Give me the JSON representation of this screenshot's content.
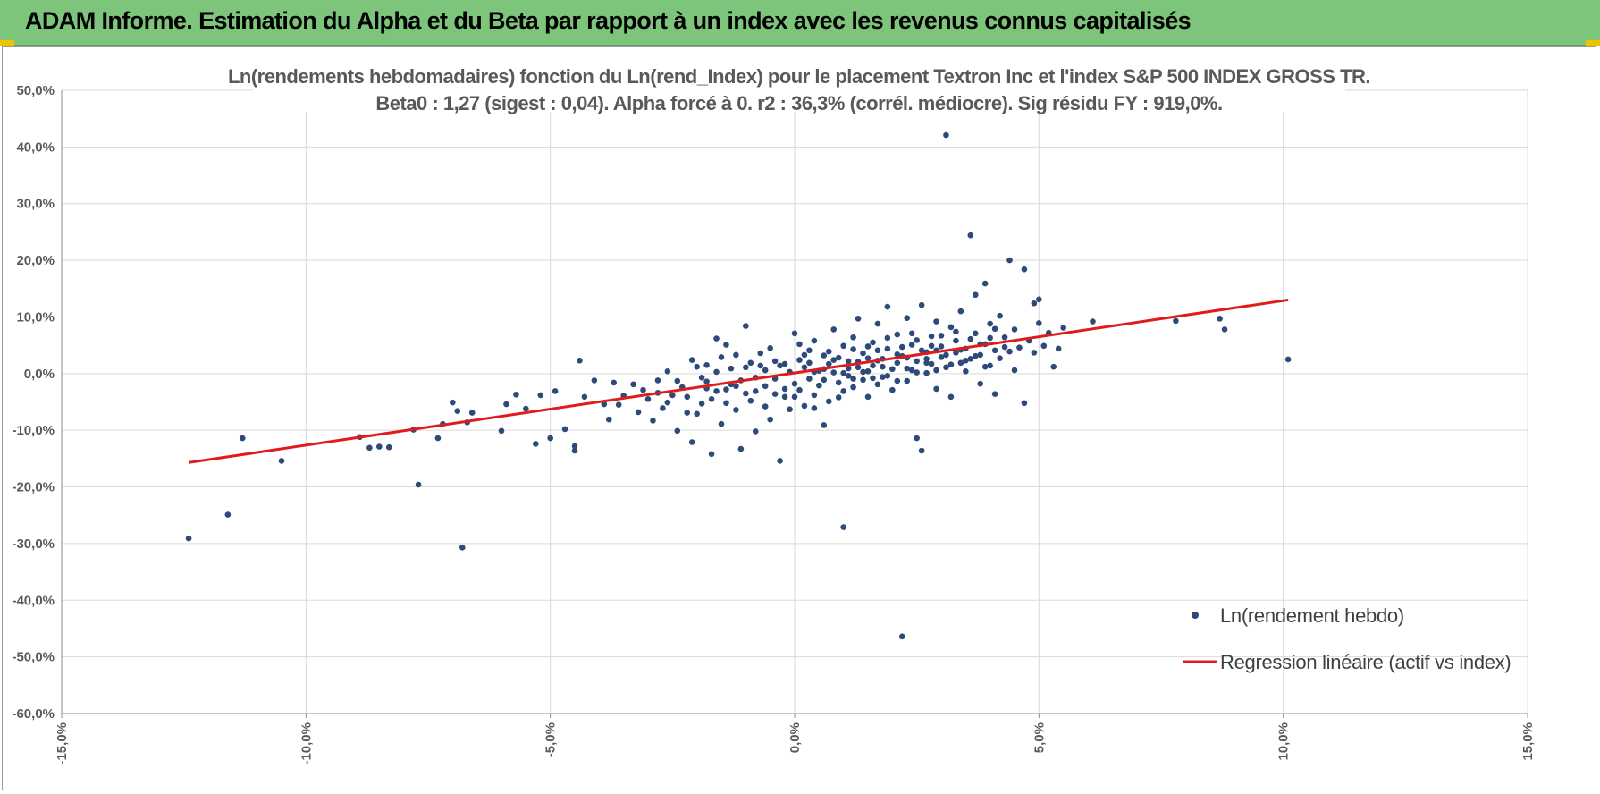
{
  "header": {
    "title": "ADAM Informe. Estimation du Alpha et du Beta par rapport à un index avec les revenus connus capitalisés",
    "background_color": "#7cc57a",
    "corner_color": "#f2c200"
  },
  "chart_data": {
    "type": "scatter",
    "title": "Ln(rendements hebdomadaires) fonction du Ln(rend_Index) pour le placement Textron Inc et l'index S&P 500 INDEX GROSS TR.",
    "subtitle": "Beta0 : 1,27 (sigest : 0,04). Alpha forcé à 0. r2 : 36,3% (corrél. médiocre). Sig résidu FY : 919,0%.",
    "xlabel": "",
    "ylabel": "",
    "xlim": [
      -0.15,
      0.15
    ],
    "ylim": [
      -0.6,
      0.5
    ],
    "x_ticks": [
      -0.15,
      -0.1,
      -0.05,
      0.0,
      0.05,
      0.1,
      0.15
    ],
    "x_tick_labels": [
      "-15,0%",
      "-10,0%",
      "-5,0%",
      "0,0%",
      "5,0%",
      "10,0%",
      "15,0%"
    ],
    "y_ticks": [
      0.5,
      0.4,
      0.3,
      0.2,
      0.1,
      0.0,
      -0.1,
      -0.2,
      -0.3,
      -0.4,
      -0.5,
      -0.6
    ],
    "y_tick_labels": [
      "50,0%",
      "40,0%",
      "30,0%",
      "20,0%",
      "10,0%",
      "0,0%",
      "-10,0%",
      "-20,0%",
      "-30,0%",
      "-40,0%",
      "-50,0%",
      "-60,0%"
    ],
    "grid": true,
    "legend_position": "bottom-right",
    "series": [
      {
        "name": "Ln(rendement hebdo)",
        "kind": "scatter",
        "color": "#2e4a7a",
        "points": [
          [
            -0.124,
            -0.291
          ],
          [
            -0.116,
            -0.249
          ],
          [
            -0.113,
            -0.114
          ],
          [
            -0.105,
            -0.154
          ],
          [
            -0.089,
            -0.112
          ],
          [
            -0.087,
            -0.131
          ],
          [
            -0.085,
            -0.129
          ],
          [
            -0.083,
            -0.13
          ],
          [
            -0.078,
            -0.099
          ],
          [
            -0.077,
            -0.196
          ],
          [
            -0.073,
            -0.114
          ],
          [
            -0.072,
            -0.089
          ],
          [
            -0.07,
            -0.051
          ],
          [
            -0.069,
            -0.066
          ],
          [
            -0.068,
            -0.307
          ],
          [
            -0.067,
            -0.086
          ],
          [
            -0.066,
            -0.069
          ],
          [
            -0.06,
            -0.101
          ],
          [
            -0.059,
            -0.054
          ],
          [
            -0.057,
            -0.037
          ],
          [
            -0.055,
            -0.062
          ],
          [
            -0.053,
            -0.124
          ],
          [
            -0.052,
            -0.038
          ],
          [
            -0.05,
            -0.114
          ],
          [
            -0.049,
            -0.031
          ],
          [
            -0.047,
            -0.098
          ],
          [
            -0.045,
            -0.136
          ],
          [
            -0.045,
            -0.128
          ],
          [
            -0.044,
            0.023
          ],
          [
            -0.043,
            -0.041
          ],
          [
            -0.041,
            -0.012
          ],
          [
            -0.039,
            -0.054
          ],
          [
            -0.038,
            -0.081
          ],
          [
            -0.037,
            -0.016
          ],
          [
            -0.036,
            -0.055
          ],
          [
            -0.035,
            -0.039
          ],
          [
            -0.033,
            -0.019
          ],
          [
            -0.032,
            -0.068
          ],
          [
            -0.031,
            -0.029
          ],
          [
            -0.03,
            -0.045
          ],
          [
            -0.029,
            -0.083
          ],
          [
            -0.028,
            -0.012
          ],
          [
            -0.027,
            -0.061
          ],
          [
            -0.026,
            0.004
          ],
          [
            -0.025,
            -0.038
          ],
          [
            -0.024,
            -0.101
          ],
          [
            -0.023,
            -0.024
          ],
          [
            -0.022,
            -0.069
          ],
          [
            -0.021,
            -0.121
          ],
          [
            -0.02,
            0.012
          ],
          [
            -0.019,
            -0.053
          ],
          [
            -0.018,
            -0.014
          ],
          [
            -0.017,
            -0.142
          ],
          [
            -0.016,
            0.062
          ],
          [
            -0.016,
            -0.031
          ],
          [
            -0.015,
            -0.089
          ],
          [
            -0.014,
            0.051
          ],
          [
            -0.013,
            -0.019
          ],
          [
            -0.012,
            -0.064
          ],
          [
            -0.011,
            -0.133
          ],
          [
            -0.01,
            0.084
          ],
          [
            -0.01,
            -0.035
          ],
          [
            -0.009,
            0.019
          ],
          [
            -0.008,
            -0.007
          ],
          [
            -0.008,
            -0.102
          ],
          [
            -0.007,
            0.036
          ],
          [
            -0.006,
            -0.022
          ],
          [
            -0.005,
            -0.081
          ],
          [
            -0.005,
            0.045
          ],
          [
            -0.004,
            -0.009
          ],
          [
            -0.003,
            -0.154
          ],
          [
            -0.003,
            0.014
          ],
          [
            -0.002,
            -0.041
          ],
          [
            -0.001,
            0.003
          ],
          [
            -0.001,
            -0.063
          ],
          [
            0.0,
            0.071
          ],
          [
            0.0,
            -0.018
          ],
          [
            0.001,
            -0.029
          ],
          [
            0.001,
            0.024
          ],
          [
            0.002,
            -0.057
          ],
          [
            0.002,
            0.011
          ],
          [
            0.003,
            0.041
          ],
          [
            0.003,
            -0.009
          ],
          [
            0.004,
            -0.038
          ],
          [
            0.004,
            0.058
          ],
          [
            0.005,
            0.005
          ],
          [
            0.005,
            -0.021
          ],
          [
            0.006,
            0.032
          ],
          [
            0.006,
            -0.091
          ],
          [
            0.007,
            0.017
          ],
          [
            0.007,
            -0.049
          ],
          [
            0.008,
            0.078
          ],
          [
            0.008,
            0.002
          ],
          [
            0.009,
            -0.016
          ],
          [
            0.009,
            0.028
          ],
          [
            0.01,
            -0.031
          ],
          [
            0.01,
            0.049
          ],
          [
            0.01,
            -0.271
          ],
          [
            0.011,
            0.009
          ],
          [
            0.011,
            -0.004
          ],
          [
            0.012,
            0.064
          ],
          [
            0.012,
            -0.024
          ],
          [
            0.013,
            0.021
          ],
          [
            0.013,
            0.097
          ],
          [
            0.014,
            -0.011
          ],
          [
            0.014,
            0.036
          ],
          [
            0.015,
            0.004
          ],
          [
            0.015,
            -0.041
          ],
          [
            0.016,
            0.055
          ],
          [
            0.016,
            0.014
          ],
          [
            0.017,
            -0.019
          ],
          [
            0.017,
            0.088
          ],
          [
            0.018,
            0.026
          ],
          [
            0.018,
            -0.006
          ],
          [
            0.019,
            0.044
          ],
          [
            0.019,
            0.118
          ],
          [
            0.02,
            0.008
          ],
          [
            0.02,
            -0.029
          ],
          [
            0.021,
            0.069
          ],
          [
            0.021,
            0.019
          ],
          [
            0.022,
            -0.464
          ],
          [
            0.022,
            0.031
          ],
          [
            0.023,
            -0.013
          ],
          [
            0.023,
            0.098
          ],
          [
            0.024,
            0.006
          ],
          [
            0.024,
            0.051
          ],
          [
            0.025,
            -0.114
          ],
          [
            0.025,
            0.022
          ],
          [
            0.026,
            -0.136
          ],
          [
            0.026,
            0.121
          ],
          [
            0.027,
            0.038
          ],
          [
            0.027,
            0.001
          ],
          [
            0.028,
            0.066
          ],
          [
            0.028,
            0.017
          ],
          [
            0.029,
            -0.027
          ],
          [
            0.029,
            0.092
          ],
          [
            0.03,
            0.029
          ],
          [
            0.03,
            0.048
          ],
          [
            0.031,
            0.421
          ],
          [
            0.031,
            0.011
          ],
          [
            0.032,
            0.082
          ],
          [
            0.032,
            -0.041
          ],
          [
            0.033,
            0.037
          ],
          [
            0.033,
            0.058
          ],
          [
            0.034,
            0.019
          ],
          [
            0.034,
            0.11
          ],
          [
            0.035,
            0.004
          ],
          [
            0.035,
            0.044
          ],
          [
            0.036,
            0.244
          ],
          [
            0.036,
            0.026
          ],
          [
            0.037,
            0.139
          ],
          [
            0.037,
            0.071
          ],
          [
            0.038,
            -0.018
          ],
          [
            0.038,
            0.033
          ],
          [
            0.039,
            0.159
          ],
          [
            0.039,
            0.052
          ],
          [
            0.04,
            0.088
          ],
          [
            0.04,
            0.014
          ],
          [
            0.041,
            0.041
          ],
          [
            0.041,
            -0.036
          ],
          [
            0.042,
            0.102
          ],
          [
            0.042,
            0.027
          ],
          [
            0.043,
            0.064
          ],
          [
            0.044,
            0.2
          ],
          [
            0.044,
            0.039
          ],
          [
            0.045,
            0.006
          ],
          [
            0.045,
            0.078
          ],
          [
            0.046,
            0.046
          ],
          [
            0.047,
            -0.052
          ],
          [
            0.047,
            0.184
          ],
          [
            0.048,
            0.058
          ],
          [
            0.049,
            0.037
          ],
          [
            0.049,
            0.124
          ],
          [
            0.05,
            0.089
          ],
          [
            0.05,
            0.131
          ],
          [
            0.051,
            0.049
          ],
          [
            0.052,
            0.072
          ],
          [
            0.053,
            0.012
          ],
          [
            0.054,
            0.044
          ],
          [
            0.055,
            0.081
          ],
          [
            0.061,
            0.092
          ],
          [
            0.078,
            0.093
          ],
          [
            0.087,
            0.097
          ],
          [
            0.088,
            0.078
          ],
          [
            0.101,
            0.025
          ],
          [
            -0.021,
            0.024
          ],
          [
            -0.019,
            -0.007
          ],
          [
            -0.018,
            0.015
          ],
          [
            -0.017,
            -0.045
          ],
          [
            -0.015,
            0.029
          ],
          [
            -0.014,
            -0.028
          ],
          [
            -0.013,
            0.009
          ],
          [
            -0.012,
            0.033
          ],
          [
            -0.011,
            -0.012
          ],
          [
            -0.009,
            -0.048
          ],
          [
            -0.007,
            0.014
          ],
          [
            -0.006,
            -0.058
          ],
          [
            -0.004,
            0.022
          ],
          [
            -0.002,
            -0.027
          ],
          [
            0.001,
            0.052
          ],
          [
            0.003,
            0.019
          ],
          [
            0.004,
            -0.061
          ],
          [
            0.006,
            0.008
          ],
          [
            0.007,
            0.039
          ],
          [
            0.009,
            -0.042
          ],
          [
            0.011,
            0.022
          ],
          [
            0.012,
            0.043
          ],
          [
            0.014,
            0.003
          ],
          [
            0.015,
            0.027
          ],
          [
            0.016,
            -0.008
          ],
          [
            0.017,
            0.041
          ],
          [
            0.018,
            0.012
          ],
          [
            0.019,
            0.063
          ],
          [
            0.021,
            -0.013
          ],
          [
            0.022,
            0.047
          ],
          [
            0.023,
            0.028
          ],
          [
            0.024,
            0.071
          ],
          [
            0.025,
            0.002
          ],
          [
            0.026,
            0.041
          ],
          [
            0.027,
            0.019
          ],
          [
            0.028,
            0.049
          ],
          [
            0.029,
            0.006
          ],
          [
            0.03,
            0.067
          ],
          [
            0.031,
            0.033
          ],
          [
            0.032,
            0.016
          ],
          [
            0.033,
            0.074
          ],
          [
            0.034,
            0.042
          ],
          [
            0.035,
            0.023
          ],
          [
            0.036,
            0.061
          ],
          [
            0.037,
            0.031
          ],
          [
            0.038,
            0.052
          ],
          [
            0.039,
            0.012
          ],
          [
            0.04,
            0.063
          ],
          [
            0.041,
            0.079
          ],
          [
            0.043,
            0.047
          ],
          [
            -0.028,
            -0.034
          ],
          [
            -0.026,
            -0.051
          ],
          [
            -0.024,
            -0.013
          ],
          [
            -0.022,
            -0.041
          ],
          [
            -0.02,
            -0.071
          ],
          [
            -0.018,
            -0.026
          ],
          [
            -0.016,
            0.003
          ],
          [
            -0.014,
            -0.052
          ],
          [
            -0.012,
            -0.022
          ],
          [
            -0.01,
            0.011
          ],
          [
            -0.008,
            -0.031
          ],
          [
            -0.006,
            0.006
          ],
          [
            -0.004,
            -0.036
          ],
          [
            -0.002,
            0.017
          ],
          [
            0.0,
            -0.041
          ],
          [
            0.002,
            0.033
          ],
          [
            0.004,
            0.003
          ],
          [
            0.006,
            -0.011
          ],
          [
            0.008,
            0.024
          ],
          [
            0.01,
            0.001
          ],
          [
            0.012,
            -0.009
          ],
          [
            0.013,
            0.011
          ],
          [
            0.015,
            0.048
          ],
          [
            0.017,
            0.023
          ],
          [
            0.019,
            -0.004
          ],
          [
            0.021,
            0.034
          ],
          [
            0.023,
            0.009
          ],
          [
            0.025,
            0.059
          ],
          [
            0.027,
            0.026
          ],
          [
            0.029,
            0.041
          ]
        ]
      },
      {
        "name": "Regression linéaire (actif vs index)",
        "kind": "line",
        "color": "#e01b1b",
        "points": [
          [
            -0.124,
            -0.157
          ],
          [
            0.101,
            0.13
          ]
        ]
      }
    ]
  }
}
